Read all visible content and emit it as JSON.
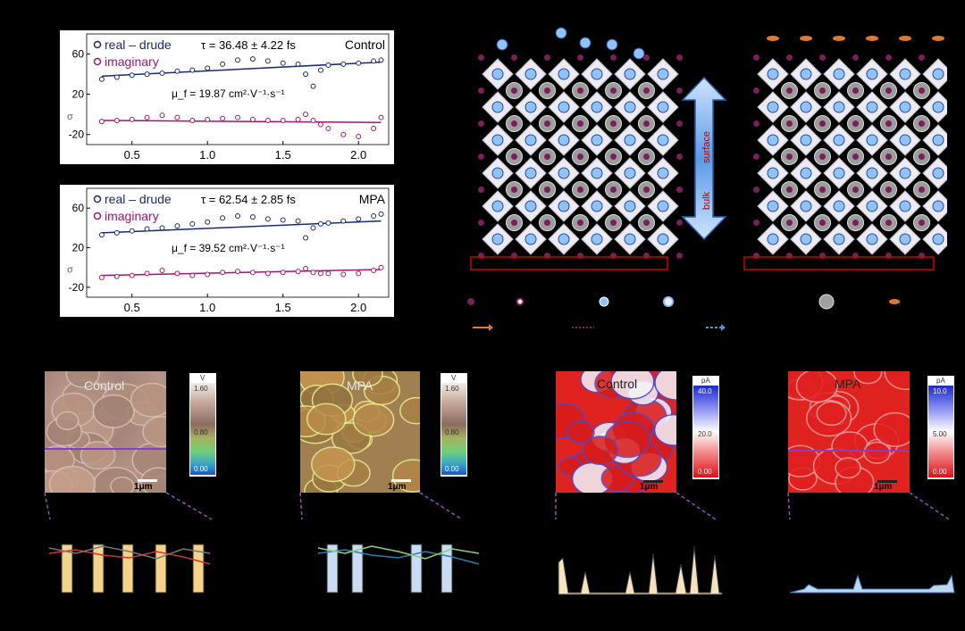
{
  "panel_a": {
    "chart_data": [
      {
        "type": "scatter",
        "legend": [
          "real – drude",
          "imaginary"
        ],
        "tau": "τ = 36.48 ± 4.22 fs",
        "sample": "Control",
        "mobility": "μ_f = 19.87 cm²·V⁻¹·s⁻¹",
        "y_tick_labels": [
          "60",
          "20",
          "-20"
        ],
        "y_axis_label": "σ",
        "x_tick_labels": [
          "0.5",
          "1.0",
          "1.5",
          "2.0"
        ],
        "xlim": [
          0.2,
          2.2
        ],
        "ylim": [
          -30,
          80
        ],
        "series": [
          {
            "x": [
              0.3,
              0.4,
              0.5,
              0.6,
              0.7,
              0.8,
              0.9,
              1.0,
              1.1,
              1.2,
              1.3,
              1.4,
              1.5,
              1.6,
              1.65,
              1.7,
              1.75,
              1.8,
              1.9,
              2.0,
              2.1,
              2.15
            ],
            "values": [
              35,
              37,
              39,
              40,
              41,
              43,
              44,
              46,
              50,
              54,
              55,
              53,
              51,
              50,
              40,
              28,
              44,
              49,
              50,
              51,
              53,
              54
            ]
          },
          {
            "x": [
              0.3,
              0.4,
              0.5,
              0.6,
              0.7,
              0.8,
              0.9,
              1.0,
              1.1,
              1.2,
              1.3,
              1.4,
              1.5,
              1.6,
              1.65,
              1.7,
              1.75,
              1.8,
              1.9,
              2.0,
              2.1,
              2.15
            ],
            "values": [
              -7,
              -6,
              -5,
              -3,
              -1,
              -3,
              -6,
              -5,
              -4,
              -3,
              -5,
              -6,
              -6,
              -5,
              0,
              -6,
              -10,
              -14,
              -20,
              -22,
              -14,
              -3
            ]
          }
        ]
      },
      {
        "type": "scatter",
        "legend": [
          "real – drude",
          "imaginary"
        ],
        "tau": "τ = 62.54 ± 2.85 fs",
        "sample": "MPA",
        "mobility": "μ_f = 39.52 cm²·V⁻¹·s⁻¹",
        "y_tick_labels": [
          "60",
          "20",
          "-20"
        ],
        "y_axis_label": "σ",
        "x_tick_labels": [
          "0.5",
          "1.0",
          "1.5",
          "2.0"
        ],
        "xlim": [
          0.2,
          2.2
        ],
        "ylim": [
          -30,
          80
        ],
        "series": [
          {
            "x": [
              0.3,
              0.4,
              0.5,
              0.6,
              0.7,
              0.8,
              0.9,
              1.0,
              1.1,
              1.2,
              1.3,
              1.4,
              1.5,
              1.6,
              1.65,
              1.7,
              1.75,
              1.8,
              1.9,
              2.0,
              2.1,
              2.15
            ],
            "values": [
              33,
              35,
              37,
              39,
              40,
              42,
              44,
              46,
              50,
              52,
              51,
              49,
              48,
              47,
              30,
              40,
              44,
              45,
              47,
              49,
              52,
              54
            ]
          },
          {
            "x": [
              0.3,
              0.4,
              0.5,
              0.6,
              0.7,
              0.8,
              0.9,
              1.0,
              1.1,
              1.2,
              1.3,
              1.4,
              1.5,
              1.6,
              1.65,
              1.7,
              1.75,
              1.8,
              1.9,
              2.0,
              2.1,
              2.15
            ],
            "values": [
              -10,
              -9,
              -8,
              -6,
              -3,
              -6,
              -8,
              -7,
              -5,
              -4,
              -5,
              -6,
              -5,
              -4,
              -1,
              -5,
              -6,
              -6,
              -7,
              -6,
              -3,
              0
            ]
          }
        ]
      }
    ]
  },
  "panel_b": {
    "surface_label": "surface",
    "bulk_label": "bulk",
    "legend_colors": [
      "#7a1f5a",
      "#7a1f5a",
      "#8fc3ff",
      "#8fc3ff",
      "#a0a0a0",
      "#e07a30"
    ]
  },
  "panel_c": {
    "kpfm": [
      {
        "title": "Control",
        "scale": "1μm",
        "cbar_unit": "V",
        "cbar_ticks": [
          "1.60",
          "0.80",
          "0.00"
        ]
      },
      {
        "title": "MPA",
        "scale": "1μm",
        "cbar_unit": "V",
        "cbar_ticks": [
          "1.60",
          "0.80",
          "0.00"
        ]
      }
    ],
    "cafm": [
      {
        "title": "Control",
        "scale": "1μm",
        "cbar_unit": "pA",
        "cbar_ticks": [
          "40.0",
          "20.0",
          "0.00"
        ]
      },
      {
        "title": "MPA",
        "scale": "1μm",
        "cbar_unit": "pA",
        "cbar_ticks": [
          "10.0",
          "5.00",
          "0.00"
        ]
      }
    ]
  }
}
